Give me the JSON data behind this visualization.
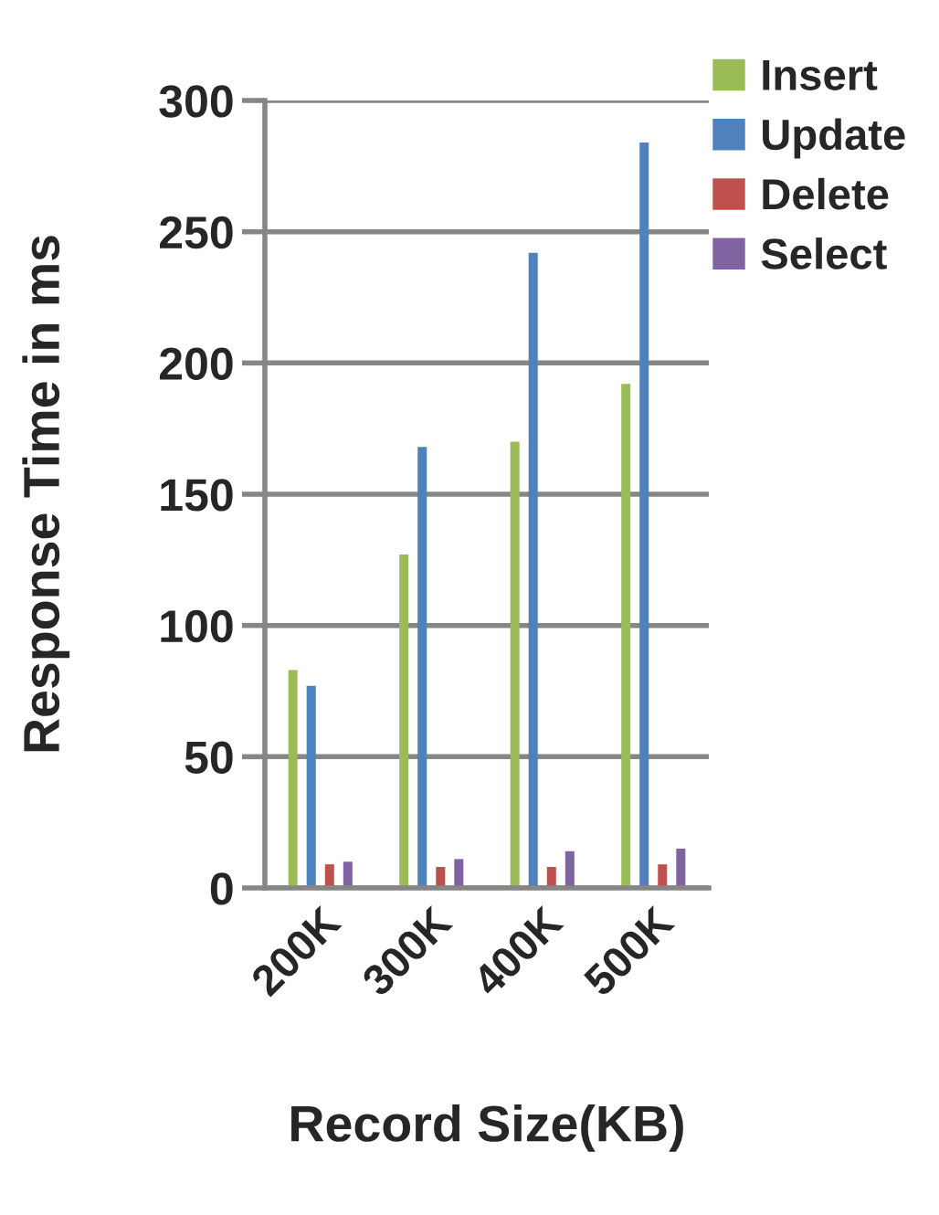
{
  "chart_data": {
    "type": "bar",
    "xlabel": "Record Size(KB)",
    "ylabel": "Response Time in ms",
    "categories": [
      "200K",
      "300K",
      "400K",
      "500K"
    ],
    "series": [
      {
        "name": "Insert",
        "color": "#9bbb59",
        "values": [
          83,
          127,
          170,
          192
        ]
      },
      {
        "name": "Update",
        "color": "#4f81bd",
        "values": [
          77,
          168,
          242,
          284
        ]
      },
      {
        "name": "Delete",
        "color": "#c0504d",
        "values": [
          9,
          8,
          8,
          9
        ]
      },
      {
        "name": "Select",
        "color": "#8064a2",
        "values": [
          10,
          11,
          14,
          15
        ]
      }
    ],
    "ylim": [
      0,
      300
    ],
    "yticks": [
      0,
      50,
      100,
      150,
      200,
      250,
      300
    ],
    "grid": "y",
    "legend": "top right"
  }
}
